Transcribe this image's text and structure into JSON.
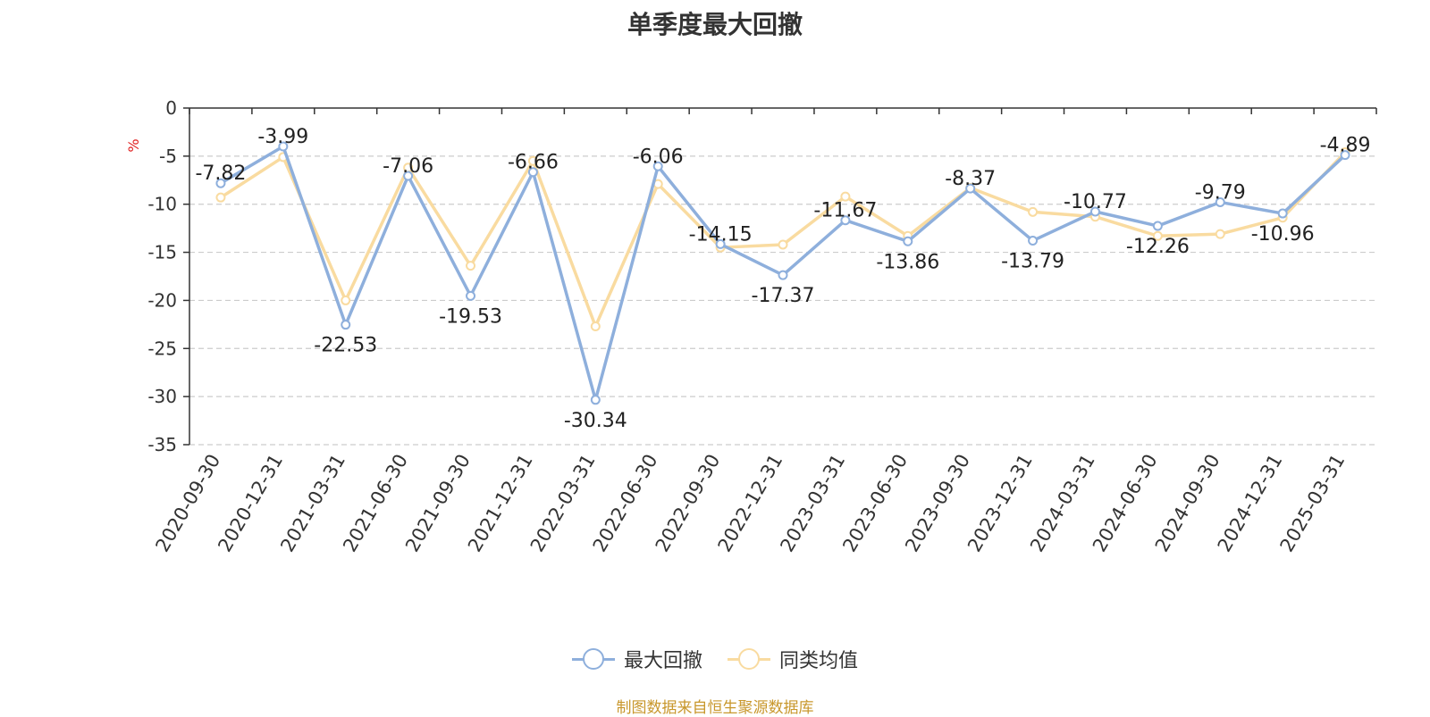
{
  "chart_data": {
    "type": "line",
    "title": "单季度最大回撤",
    "ylabel": "%",
    "ylim": [
      -35,
      0
    ],
    "yticks": [
      0,
      -5,
      -10,
      -15,
      -20,
      -25,
      -30,
      -35
    ],
    "grid": true,
    "legend_position": "bottom-center",
    "categories": [
      "2020-09-30",
      "2020-12-31",
      "2021-03-31",
      "2021-06-30",
      "2021-09-30",
      "2021-12-31",
      "2022-03-31",
      "2022-06-30",
      "2022-09-30",
      "2022-12-31",
      "2023-03-31",
      "2023-06-30",
      "2023-09-30",
      "2023-12-31",
      "2024-03-31",
      "2024-06-30",
      "2024-09-30",
      "2024-12-31",
      "2025-03-31"
    ],
    "series": [
      {
        "name": "最大回撤",
        "color": "#8eafdc",
        "show_labels": true,
        "values": [
          -7.82,
          -3.99,
          -22.53,
          -7.06,
          -19.53,
          -6.66,
          -30.34,
          -6.06,
          -14.15,
          -17.37,
          -11.67,
          -13.86,
          -8.37,
          -13.79,
          -10.77,
          -12.26,
          -9.79,
          -10.96,
          -4.89
        ]
      },
      {
        "name": "同类均值",
        "color": "#f9dba0",
        "show_labels": false,
        "values": [
          -9.3,
          -5.1,
          -20.0,
          -6.2,
          -16.4,
          -5.5,
          -22.7,
          -7.9,
          -14.5,
          -14.2,
          -9.2,
          -13.3,
          -8.3,
          -10.8,
          -11.3,
          -13.3,
          -13.1,
          -11.4,
          -4.6
        ]
      }
    ]
  },
  "source_text": "制图数据来自恒生聚源数据库"
}
